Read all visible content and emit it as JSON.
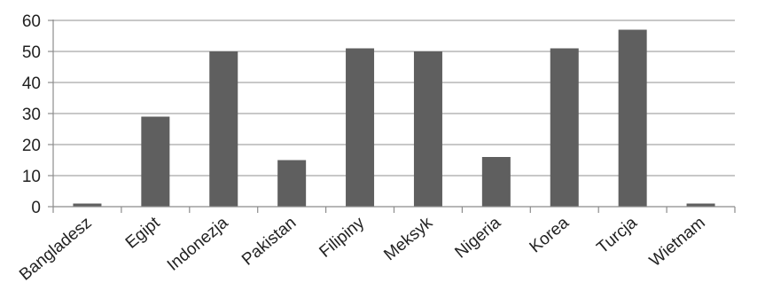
{
  "chart_data": {
    "type": "bar",
    "title": "",
    "xlabel": "",
    "ylabel": "",
    "categories": [
      "Bangladesz",
      "Egipt",
      "Indonezja",
      "Pakistan",
      "Filipiny",
      "Meksyk",
      "Nigeria",
      "Korea",
      "Turcja",
      "Wietnam"
    ],
    "values": [
      1,
      29,
      50,
      15,
      51,
      50,
      16,
      51,
      57,
      1
    ],
    "ylim": [
      0,
      60
    ],
    "yticks": [
      0,
      10,
      20,
      30,
      40,
      50,
      60
    ],
    "grid": "horizontal",
    "legend": "none",
    "colors": {
      "bar": "#5f5f5f",
      "grid": "#a6a6a6",
      "axis": "#8c8c8c",
      "text": "#222222"
    }
  }
}
